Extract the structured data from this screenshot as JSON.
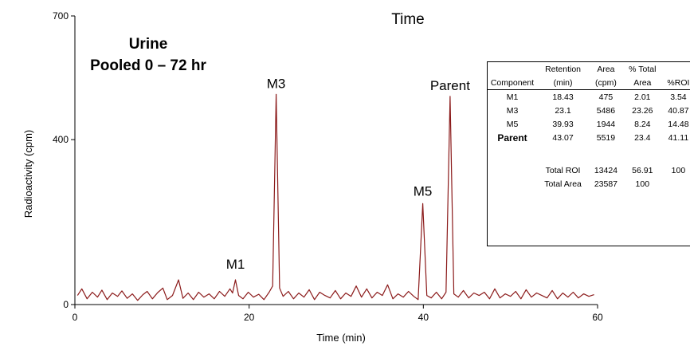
{
  "chart_data": {
    "type": "line",
    "title": "Time",
    "xlabel": "Time (min)",
    "ylabel": "Radioactivity (cpm)",
    "xlim": [
      0,
      60
    ],
    "ylim": [
      0,
      700
    ],
    "xticks": [
      "0",
      "20",
      "40",
      "60"
    ],
    "yticks": [
      "0",
      "400",
      "700"
    ],
    "color": "#8b1a1a",
    "sample_label": [
      "Urine",
      "Pooled 0 – 72 hr"
    ],
    "peaks": [
      {
        "label": "M1",
        "x": 18.43,
        "y": 60
      },
      {
        "label": "M3",
        "x": 23.1,
        "y": 510
      },
      {
        "label": "M5",
        "x": 39.93,
        "y": 245
      },
      {
        "label": "Parent",
        "x": 43.07,
        "y": 505
      }
    ],
    "x": [
      0.3,
      0.8,
      1.4,
      2.0,
      2.6,
      3.1,
      3.7,
      4.3,
      4.9,
      5.4,
      6.0,
      6.6,
      7.2,
      7.8,
      8.3,
      8.9,
      9.5,
      10.1,
      10.6,
      11.2,
      11.9,
      12.4,
      13.0,
      13.6,
      14.2,
      14.8,
      15.4,
      16.0,
      16.6,
      17.2,
      17.8,
      18.1,
      18.43,
      18.8,
      19.3,
      19.9,
      20.5,
      21.1,
      21.7,
      22.3,
      22.7,
      23.1,
      23.5,
      23.9,
      24.5,
      25.1,
      25.7,
      26.3,
      26.9,
      27.5,
      28.1,
      28.7,
      29.3,
      29.9,
      30.5,
      31.1,
      31.7,
      32.3,
      32.9,
      33.5,
      34.1,
      34.7,
      35.3,
      35.9,
      36.5,
      37.1,
      37.7,
      38.3,
      38.9,
      39.4,
      39.93,
      40.4,
      40.9,
      41.5,
      42.1,
      42.6,
      43.07,
      43.5,
      44.0,
      44.6,
      45.2,
      45.8,
      46.4,
      47.0,
      47.6,
      48.2,
      48.8,
      49.4,
      50.0,
      50.6,
      51.2,
      51.8,
      52.4,
      53.0,
      53.6,
      54.2,
      54.8,
      55.4,
      56.0,
      56.6,
      57.2,
      57.8,
      58.4,
      59.0,
      59.6
    ],
    "y": [
      22,
      38,
      14,
      30,
      18,
      35,
      12,
      28,
      20,
      33,
      15,
      26,
      10,
      24,
      32,
      14,
      29,
      40,
      12,
      22,
      60,
      15,
      28,
      12,
      30,
      18,
      26,
      14,
      32,
      20,
      38,
      28,
      60,
      22,
      14,
      30,
      18,
      25,
      12,
      30,
      45,
      510,
      40,
      20,
      32,
      14,
      28,
      18,
      36,
      12,
      30,
      22,
      16,
      34,
      14,
      28,
      20,
      45,
      18,
      38,
      16,
      30,
      22,
      48,
      14,
      26,
      18,
      32,
      20,
      12,
      245,
      22,
      16,
      30,
      14,
      30,
      505,
      26,
      18,
      34,
      16,
      28,
      22,
      30,
      14,
      38,
      16,
      26,
      20,
      32,
      14,
      36,
      18,
      28,
      22,
      16,
      34,
      14,
      28,
      18,
      30,
      16,
      26,
      20,
      24
    ]
  },
  "results_table": {
    "headers": [
      [
        "",
        "Retention",
        "Area",
        "% Total",
        ""
      ],
      [
        "Component",
        "(min)",
        "(cpm)",
        "Area",
        "%ROI"
      ]
    ],
    "rows": [
      [
        "M1",
        "18.43",
        "475",
        "2.01",
        "3.54"
      ],
      [
        "M3",
        "23.1",
        "5486",
        "23.26",
        "40.87"
      ],
      [
        "M5",
        "39.93",
        "1944",
        "8.24",
        "14.48"
      ],
      [
        "Parent",
        "43.07",
        "5519",
        "23.4",
        "41.11"
      ]
    ],
    "totals": [
      [
        "",
        "Total ROI",
        "13424",
        "56.91",
        "100"
      ],
      [
        "",
        "Total Area",
        "23587",
        "100",
        ""
      ]
    ]
  }
}
